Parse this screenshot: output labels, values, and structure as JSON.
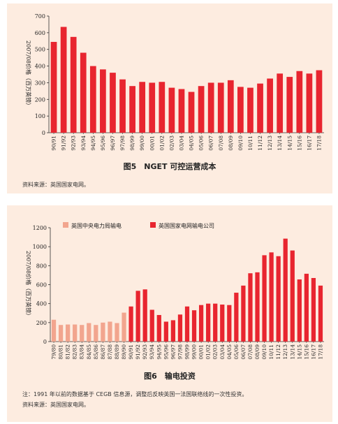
{
  "figure1": {
    "caption": "图5　NGET 可控运营成本",
    "source": "资料来源：英国国家电网。",
    "chart_data": {
      "type": "bar",
      "ylabel": "2007/08价格（百万英镑）",
      "ylim": [
        0,
        700
      ],
      "yticks": [
        0,
        100,
        200,
        300,
        400,
        500,
        600,
        700
      ],
      "grid": false,
      "color": "#e8252f",
      "categories": [
        "90/91",
        "91/92",
        "92/93",
        "93/94",
        "94/95",
        "95/96",
        "96/97",
        "97/98",
        "98/99",
        "99/00",
        "00/01",
        "01/02",
        "02/03",
        "03/04",
        "04/05",
        "05/06",
        "06/07",
        "07/08",
        "08/09",
        "09/10",
        "10/11",
        "11/12",
        "12/13",
        "13/14",
        "14/15",
        "15/16",
        "16/17",
        "17/18"
      ],
      "values": [
        545,
        635,
        575,
        480,
        400,
        380,
        360,
        320,
        280,
        305,
        300,
        305,
        270,
        262,
        245,
        280,
        300,
        300,
        315,
        275,
        270,
        295,
        325,
        355,
        335,
        370,
        355,
        375
      ]
    }
  },
  "figure2": {
    "caption": "图6　输电投资",
    "note": "注：1991 年以前的数据基于 CEGB 信息源，调整后反映英国一法国联络线的一次性投资。",
    "source": "资料来源：英国国家电网。",
    "chart_data": {
      "type": "bar",
      "ylabel": "2007/08价格（百万英镑）",
      "ylim": [
        0,
        1200
      ],
      "yticks": [
        0,
        200,
        400,
        600,
        800,
        1000,
        1200
      ],
      "grid": false,
      "legend_position": "top",
      "series": [
        {
          "name": "英国中央电力局输电",
          "color": "#f2a58e"
        },
        {
          "name": "英国国家电网输电公司",
          "color": "#e8252f"
        }
      ],
      "categories": [
        "79/80",
        "80/81",
        "81/82",
        "82/83",
        "83/84",
        "84/85",
        "85/86",
        "86/87",
        "87/88",
        "88/89",
        "89/90",
        "90/91",
        "91/92",
        "92/93",
        "93/94",
        "94/95",
        "95/96",
        "96/97",
        "97/98",
        "98/99",
        "99/00",
        "00/01",
        "01/02",
        "02/03",
        "03/04",
        "04/05",
        "05/06",
        "06/07",
        "07/08",
        "08/09",
        "09/10",
        "10/11",
        "11/12",
        "12/13",
        "13/14",
        "14/15",
        "15/16",
        "16/17",
        "17/18"
      ],
      "values": [
        230,
        175,
        180,
        180,
        175,
        195,
        175,
        200,
        210,
        195,
        305,
        370,
        535,
        550,
        335,
        280,
        210,
        225,
        285,
        370,
        330,
        385,
        400,
        400,
        390,
        385,
        515,
        590,
        720,
        730,
        910,
        940,
        900,
        1085,
        960,
        655,
        715,
        670,
        590
      ],
      "series_index": [
        0,
        0,
        0,
        0,
        0,
        0,
        0,
        0,
        0,
        0,
        0,
        1,
        1,
        1,
        1,
        1,
        1,
        1,
        1,
        1,
        1,
        1,
        1,
        1,
        1,
        1,
        1,
        1,
        1,
        1,
        1,
        1,
        1,
        1,
        1,
        1,
        1,
        1,
        1
      ]
    }
  }
}
